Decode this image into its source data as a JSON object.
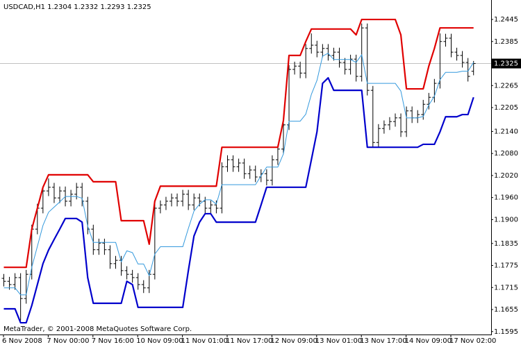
{
  "chart_data": {
    "type": "ohlc",
    "title": "USDCAD,H1  1.2304 1.2332 1.2293 1.2325",
    "annotation": "MetaTrader, © 2001-2008 MetaQuotes Software Corp.",
    "categories": [
      "6 Nov 2008",
      null,
      null,
      null,
      null,
      null,
      null,
      null,
      "7 Nov 00:00",
      null,
      null,
      null,
      null,
      null,
      null,
      null,
      "7 Nov 16:00",
      null,
      null,
      null,
      null,
      null,
      null,
      null,
      "10 Nov 09:00",
      null,
      null,
      null,
      null,
      null,
      null,
      null,
      "11 Nov 01:00",
      null,
      null,
      null,
      null,
      null,
      null,
      null,
      "11 Nov 17:00",
      null,
      null,
      null,
      null,
      null,
      null,
      null,
      "12 Nov 09:00",
      null,
      null,
      null,
      null,
      null,
      null,
      null,
      "13 Nov 01:00",
      null,
      null,
      null,
      null,
      null,
      null,
      null,
      "13 Nov 17:00",
      null,
      null,
      null,
      null,
      null,
      null,
      null,
      "14 Nov 09:00",
      null,
      null,
      null,
      null,
      null,
      null,
      null,
      "17 Nov 02:00",
      null,
      null,
      null,
      null
    ],
    "open": [
      1.174,
      1.1732,
      1.1723,
      1.1742,
      1.1685,
      1.1751,
      1.1874,
      1.1931,
      1.1978,
      1.1988,
      1.1959,
      1.1978,
      1.195,
      1.1969,
      1.1988,
      1.195,
      1.1874,
      1.1818,
      1.1836,
      1.1818,
      1.178,
      1.1789,
      1.1761,
      1.1751,
      1.1742,
      1.1723,
      1.1714,
      1.1751,
      1.1931,
      1.194,
      1.195,
      1.1959,
      1.195,
      1.1969,
      1.194,
      1.1959,
      1.195,
      1.1931,
      1.194,
      1.1931,
      1.2044,
      1.2063,
      1.2044,
      1.2054,
      1.2025,
      1.2035,
      1.2016,
      1.2025,
      1.2007,
      1.2063,
      1.2092,
      1.2158,
      1.2309,
      1.2318,
      1.2299,
      1.2366,
      1.2375,
      1.2356,
      1.2366,
      1.2347,
      1.2356,
      1.2328,
      1.2309,
      1.2337,
      1.229,
      1.2422,
      1.2252,
      1.211,
      1.2148,
      1.2158,
      1.2167,
      1.2177,
      1.2139,
      1.2196,
      1.2177,
      1.2186,
      1.2214,
      1.2233,
      1.2271,
      1.2385,
      1.2394,
      1.2356,
      1.2347,
      1.2328,
      1.2304
    ],
    "high": [
      1.1752,
      1.1744,
      1.1754,
      1.1754,
      1.1763,
      1.1886,
      1.1943,
      1.199,
      1.2012,
      1.2,
      1.199,
      1.199,
      1.1981,
      1.2,
      1.2,
      1.1962,
      1.1886,
      1.1848,
      1.1848,
      1.183,
      1.1801,
      1.1801,
      1.1773,
      1.1763,
      1.1754,
      1.1735,
      1.1763,
      1.1943,
      1.1952,
      1.1962,
      1.1971,
      1.1971,
      1.1981,
      1.1981,
      1.1971,
      1.1971,
      1.1962,
      1.1952,
      1.1952,
      1.2056,
      1.2075,
      1.2075,
      1.2066,
      1.2066,
      1.2047,
      1.2047,
      1.2037,
      1.2037,
      1.2075,
      1.2104,
      1.217,
      1.2321,
      1.233,
      1.233,
      1.2378,
      1.2407,
      1.2387,
      1.2378,
      1.2378,
      1.2368,
      1.2368,
      1.234,
      1.2349,
      1.2349,
      1.2434,
      1.2434,
      1.2264,
      1.216,
      1.217,
      1.2179,
      1.2189,
      1.2189,
      1.2208,
      1.2208,
      1.2198,
      1.2226,
      1.2245,
      1.2283,
      1.2407,
      1.2406,
      1.2406,
      1.2368,
      1.2359,
      1.234,
      1.2332
    ],
    "low": [
      1.1718,
      1.1709,
      1.1709,
      1.1625,
      1.1671,
      1.1737,
      1.186,
      1.1917,
      1.1964,
      1.1945,
      1.1945,
      1.1936,
      1.1936,
      1.1955,
      1.1936,
      1.186,
      1.1804,
      1.1804,
      1.1804,
      1.1766,
      1.1766,
      1.1747,
      1.1737,
      1.1728,
      1.1709,
      1.17,
      1.17,
      1.1737,
      1.1917,
      1.1926,
      1.1936,
      1.1936,
      1.1936,
      1.1926,
      1.1926,
      1.1936,
      1.1917,
      1.1917,
      1.1917,
      1.1917,
      1.203,
      1.203,
      1.203,
      1.2011,
      1.2011,
      1.2002,
      1.2002,
      1.1993,
      1.1993,
      1.2049,
      1.2078,
      1.2144,
      1.2295,
      1.2285,
      1.2285,
      1.2352,
      1.2342,
      1.2342,
      1.2333,
      1.2333,
      1.2314,
      1.2295,
      1.2295,
      1.2276,
      1.2276,
      1.2238,
      1.2096,
      1.2096,
      1.2134,
      1.2144,
      1.2153,
      1.2125,
      1.2125,
      1.2163,
      1.2163,
      1.2172,
      1.22,
      1.2219,
      1.2257,
      1.2371,
      1.2342,
      1.2333,
      1.2314,
      1.2276,
      1.2293
    ],
    "close": [
      1.1732,
      1.1723,
      1.1742,
      1.1685,
      1.1751,
      1.1874,
      1.1931,
      1.1978,
      1.1988,
      1.1959,
      1.1978,
      1.195,
      1.1969,
      1.1988,
      1.195,
      1.1874,
      1.1818,
      1.1836,
      1.1818,
      1.178,
      1.1789,
      1.1761,
      1.1751,
      1.1742,
      1.1723,
      1.1714,
      1.1751,
      1.1931,
      1.194,
      1.195,
      1.1959,
      1.195,
      1.1969,
      1.194,
      1.1959,
      1.195,
      1.1931,
      1.194,
      1.1931,
      1.2044,
      1.2063,
      1.2044,
      1.2054,
      1.2025,
      1.2035,
      1.2016,
      1.2025,
      1.2007,
      1.2063,
      1.2092,
      1.2158,
      1.2309,
      1.2318,
      1.2299,
      1.2366,
      1.2375,
      1.2356,
      1.2366,
      1.2347,
      1.2356,
      1.2328,
      1.2309,
      1.2337,
      1.229,
      1.2422,
      1.2252,
      1.211,
      1.2148,
      1.2158,
      1.2167,
      1.2177,
      1.2139,
      1.2196,
      1.2177,
      1.2186,
      1.2214,
      1.2233,
      1.2271,
      1.2385,
      1.2394,
      1.2356,
      1.2347,
      1.2328,
      1.229,
      1.2325
    ],
    "bar_color": "#000000",
    "lines": [
      {
        "color": "#e00000",
        "values": [
          1.177,
          1.177,
          1.177,
          1.177,
          1.177,
          1.1874,
          1.1931,
          1.1988,
          1.2022,
          1.2022,
          1.2022,
          1.2022,
          1.2022,
          1.2022,
          1.2022,
          1.2022,
          1.2003,
          1.2003,
          1.2003,
          1.2003,
          1.2003,
          1.1897,
          1.1897,
          1.1897,
          1.1897,
          1.1897,
          1.1833,
          1.195,
          1.1991,
          1.1991,
          1.1991,
          1.1991,
          1.1991,
          1.1991,
          1.1991,
          1.1991,
          1.1991,
          1.1991,
          1.1991,
          1.2097,
          1.2097,
          1.2097,
          1.2097,
          1.2097,
          1.2097,
          1.2097,
          1.2097,
          1.2097,
          1.2097,
          1.2097,
          1.217,
          1.2347,
          1.2347,
          1.2347,
          1.2385,
          1.2419,
          1.2419,
          1.2419,
          1.2419,
          1.2419,
          1.2419,
          1.2419,
          1.2419,
          1.2403,
          1.2445,
          1.2445,
          1.2445,
          1.2445,
          1.2445,
          1.2445,
          1.2445,
          1.2403,
          1.2256,
          1.2256,
          1.2256,
          1.2256,
          1.2318,
          1.2366,
          1.2422,
          1.2422,
          1.2422,
          1.2422,
          1.2422,
          1.2422,
          1.2422
        ]
      },
      {
        "color": "#0000cc",
        "values": [
          1.1657,
          1.1657,
          1.1657,
          1.1619,
          1.1619,
          1.1666,
          1.1723,
          1.178,
          1.1817,
          1.1846,
          1.1874,
          1.1903,
          1.1903,
          1.1903,
          1.1893,
          1.1742,
          1.1672,
          1.1672,
          1.1672,
          1.1672,
          1.1672,
          1.1672,
          1.1732,
          1.1723,
          1.1661,
          1.1661,
          1.1661,
          1.1661,
          1.1661,
          1.1661,
          1.1661,
          1.1661,
          1.1661,
          1.1761,
          1.1855,
          1.1893,
          1.1916,
          1.1916,
          1.1893,
          1.1893,
          1.1893,
          1.1893,
          1.1893,
          1.1893,
          1.1893,
          1.1893,
          1.194,
          1.1988,
          1.1988,
          1.1988,
          1.1988,
          1.1988,
          1.1988,
          1.1988,
          1.1988,
          1.2063,
          1.2139,
          1.2271,
          1.2286,
          1.2252,
          1.2252,
          1.2252,
          1.2252,
          1.2252,
          1.2252,
          1.2097,
          1.2097,
          1.2097,
          1.2097,
          1.2097,
          1.2097,
          1.2097,
          1.2097,
          1.2097,
          1.2097,
          1.2105,
          1.2105,
          1.2105,
          1.2139,
          1.218,
          1.218,
          1.218,
          1.2186,
          1.2186,
          1.2233
        ]
      },
      {
        "color": "#3399dd",
        "values": [
          1.1714,
          1.1714,
          1.1714,
          1.1695,
          1.1695,
          1.177,
          1.1827,
          1.1884,
          1.192,
          1.1934,
          1.1948,
          1.1963,
          1.1963,
          1.1963,
          1.1958,
          1.1882,
          1.1838,
          1.1838,
          1.1838,
          1.1838,
          1.1838,
          1.1785,
          1.1815,
          1.181,
          1.1779,
          1.1779,
          1.1747,
          1.1806,
          1.1826,
          1.1826,
          1.1826,
          1.1826,
          1.1826,
          1.1876,
          1.1923,
          1.1942,
          1.1954,
          1.1954,
          1.1942,
          1.1995,
          1.1995,
          1.1995,
          1.1995,
          1.1995,
          1.1995,
          1.1995,
          1.2019,
          1.2043,
          1.2043,
          1.2043,
          1.2079,
          1.2168,
          1.2168,
          1.2168,
          1.2187,
          1.2241,
          1.2279,
          1.2345,
          1.2353,
          1.2336,
          1.2336,
          1.2336,
          1.2336,
          1.2328,
          1.2349,
          1.2271,
          1.2271,
          1.2271,
          1.2271,
          1.2271,
          1.2271,
          1.225,
          1.2177,
          1.2177,
          1.2177,
          1.2181,
          1.2212,
          1.2236,
          1.2281,
          1.2301,
          1.2301,
          1.2301,
          1.2304,
          1.2304,
          1.2328
        ]
      }
    ],
    "current_price": 1.2325,
    "ylim": [
      1.1587,
      1.2498
    ],
    "yticks": [
      1.2445,
      1.2385,
      1.2265,
      1.2205,
      {
        "value": 1.214,
        "label": "1.2140"
      },
      {
        "value": 1.208,
        "label": "1.2080"
      },
      {
        "value": 1.202,
        "label": "1.2020"
      },
      {
        "value": 1.196,
        "label": "1.1960"
      },
      {
        "value": 1.19,
        "label": "1.1900"
      },
      1.1835,
      1.1775,
      1.1715,
      1.1655,
      1.1595
    ],
    "grid": false
  }
}
